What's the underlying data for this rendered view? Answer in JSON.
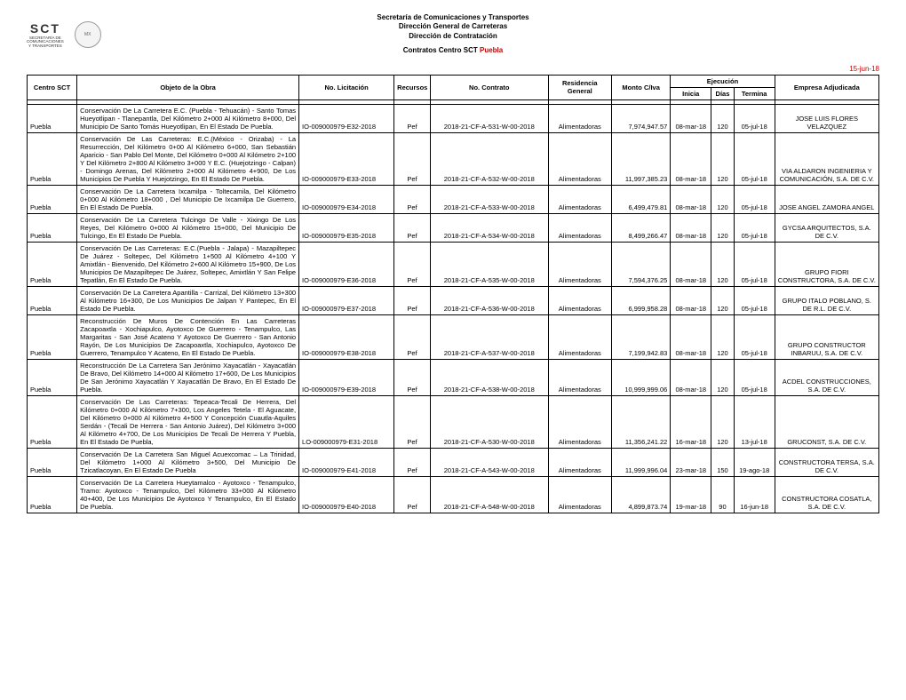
{
  "header": {
    "line1": "Secretaría de Comunicaciones y Transportes",
    "line2": "Dirección General de Carreteras",
    "line3": "Dirección de Contratación",
    "line4_a": "Contratos Centro SCT ",
    "line4_b": "Puebla",
    "date": "15-jun-18",
    "logo_sct": "SCT",
    "logo_sct_sub": "SECRETARÍA DE\nCOMUNICACIONES\nY TRANSPORTES"
  },
  "columns": {
    "centro": "Centro SCT",
    "objeto": "Objeto de la Obra",
    "licitacion": "No. Licitación",
    "recursos": "Recursos",
    "contrato": "No. Contrato",
    "residencia": "Residencia General",
    "monto": "Monto C/Iva",
    "ejecucion": "Ejecución",
    "inicia": "Inicia",
    "dias": "Días",
    "termina": "Termina",
    "empresa": "Empresa Adjudicada"
  },
  "rows": [
    {
      "centro": "Puebla",
      "objeto": "Conservación De La Carretera E.C. (Puebla - Tehuacán) - Santo Tomas Hueyotlipan - Tlanepantla, Del Kilómetro 2+000 Al Kilómetro 8+000, Del Municipio De Santo Tomás Hueyotlipan, En El Estado De Puebla.",
      "licitacion": "IO-009000979-E32-2018",
      "recursos": "Pef",
      "contrato": "2018-21-CF-A-531-W-00-2018",
      "residencia": "Alimentadoras",
      "monto": "7,974,947.57",
      "inicia": "08-mar-18",
      "dias": "120",
      "termina": "05-jul-18",
      "empresa": "JOSE LUIS FLORES VELAZQUEZ"
    },
    {
      "centro": "Puebla",
      "objeto": "Conservación De Las Carreteras: E.C.(México - Orizaba) - La Resurrección, Del Kilómetro 0+00 Al Kilómetro 6+000, San Sebastián Aparicio - San Pablo Del Monte, Del Kilómetro 0+000 Al Kilómetro 2+100 Y Del Kilómetro 2+800 Al Kilómetro 3+000  Y E.C. (Huejotzingo - Calpan) - Domingo Arenas, Del Kilómetro 2+000 Al Kilómetro 4+900, De Los Municipios De Puebla Y Huejotzingo, En El Estado De Puebla.",
      "licitacion": "IO-009000979-E33-2018",
      "recursos": "Pef",
      "contrato": "2018-21-CF-A-532-W-00-2018",
      "residencia": "Alimentadoras",
      "monto": "11,997,385.23",
      "inicia": "08-mar-18",
      "dias": "120",
      "termina": "05-jul-18",
      "empresa": "VIA ALDARON INGENIERIA Y COMUNICACIÓN, S.A. DE C.V."
    },
    {
      "centro": "Puebla",
      "objeto": "Conservación De La Carretera Ixcamilpa - Toltecamila, Del Kilómetro 0+000 Al Kilómetro 18+000 , Del Municipio De Ixcamilpa De Guerrero, En El Estado De Puebla.",
      "licitacion": "IO-009000979-E34-2018",
      "recursos": "Pef",
      "contrato": "2018-21-CF-A-533-W-00-2018",
      "residencia": "Alimentadoras",
      "monto": "6,499,479.81",
      "inicia": "08-mar-18",
      "dias": "120",
      "termina": "05-jul-18",
      "empresa": "JOSE ANGEL ZAMORA ANGEL"
    },
    {
      "centro": "Puebla",
      "objeto": "Conservación De La Carretera Tulcingo De Valle - Xixingo De Los Reyes, Del Kilómetro 0+000 Al Kilómetro 15+000, Del Municipio De Tulcingo, En El Estado De Puebla.",
      "licitacion": "IO-009000979-E35-2018",
      "recursos": "Pef",
      "contrato": "2018-21-CF-A-534-W-00-2018",
      "residencia": "Alimentadoras",
      "monto": "8,499,266.47",
      "inicia": "08-mar-18",
      "dias": "120",
      "termina": "05-jul-18",
      "empresa": "GYCSA ARQUITECTOS, S.A. DE C.V."
    },
    {
      "centro": "Puebla",
      "objeto": "Conservación De Las Carreteras: E.C.(Puebla - Jalapa) - Mazapiltepec De Juárez - Soltepec, Del Kilómetro 1+500 Al Kilómetro 4+100 Y Amixtlán - Bienvenido, Del Kilómetro 2+600 Al Kilómetro 15+900, De Los Municipios De Mazapiltepec  De Juárez, Soltepec, Amixtlán Y San Felipe Tepatlán, En El Estado De Puebla.",
      "licitacion": "IO-009000979-E36-2018",
      "recursos": "Pef",
      "contrato": "2018-21-CF-A-535-W-00-2018",
      "residencia": "Alimentadoras",
      "monto": "7,594,376.25",
      "inicia": "08-mar-18",
      "dias": "120",
      "termina": "05-jul-18",
      "empresa": "GRUPO FIORI CONSTRUCTORA, S.A. DE C.V."
    },
    {
      "centro": "Puebla",
      "objeto": "Conservación De La Carretera Apantilla - Carrizal, Del Kilómetro 13+300 Al Kilómetro 16+300, De Los Municipios De Jalpan Y Pantepec, En El Estado De Puebla.",
      "licitacion": "IO-009000979-E37-2018",
      "recursos": "Pef",
      "contrato": "2018-21-CF-A-536-W-00-2018",
      "residencia": "Alimentadoras",
      "monto": "6,999,958.28",
      "inicia": "08-mar-18",
      "dias": "120",
      "termina": "05-jul-18",
      "empresa": "GRUPO ITALO POBLANO, S. DE R.L. DE C.V."
    },
    {
      "centro": "Puebla",
      "objeto": "Reconstrucción De Muros De Contención En Las Carreteras Zacapoaxtla - Xochiapulco, Ayotoxco De Guerrero - Tenampulco, Las Margaritas - San José Acateno Y Ayotoxco De Guerrero - San Antonio Rayón, De Los Municipios De Zacapoaxtla, Xochiapulco, Ayotoxco De Guerrero, Tenampulco Y Acateno, En El Estado De Puebla.",
      "licitacion": "IO-009000979-E38-2018",
      "recursos": "Pef",
      "contrato": "2018-21-CF-A-537-W-00-2018",
      "residencia": "Alimentadoras",
      "monto": "7,199,942.83",
      "inicia": "08-mar-18",
      "dias": "120",
      "termina": "05-jul-18",
      "empresa": "GRUPO CONSTRUCTOR INBARUU, S.A. DE C.V."
    },
    {
      "centro": "Puebla",
      "objeto": "Reconstrucción De La Carretera San Jerónimo Xayacatlán - Xayacatlán De Bravo, Del Kilómetro 14+000 Al Kilómetro 17+600, De Los Municipios De San Jerónimo Xayacatlán Y Xayacatlán De Bravo, En El Estado De Puebla.",
      "licitacion": "IO-009000979-E39-2018",
      "recursos": "Pef",
      "contrato": "2018-21-CF-A-538-W-00-2018",
      "residencia": "Alimentadoras",
      "monto": "10,999,999.06",
      "inicia": "08-mar-18",
      "dias": "120",
      "termina": "05-jul-18",
      "empresa": "ACDEL CONSTRUCCIONES, S.A. DE C.V."
    },
    {
      "centro": "Puebla",
      "objeto": "Conservación De Las Carreteras: Tepeaca-Tecali De Herrera, Del Kilómetro 0+000 Al Kilómetro 7+300, Los Angeles Tetela - El Aguacate, Del Kilómetro 0+000 Al Kilómetro 4+500 Y Concepción Cuautla-Aquiles Serdán - (Tecali De Herrera - San Antonio Juárez), Del Kilómetro 3+000 Al Kilómetro 4+700, De Los Municipios De Tecali De Herrera Y Puebla, En El Estado De Puebla,",
      "licitacion": "LO-009000979-E31-2018",
      "recursos": "Pef",
      "contrato": "2018-21-CF-A-530-W-00-2018",
      "residencia": "Alimentadoras",
      "monto": "11,356,241.22",
      "inicia": "16-mar-18",
      "dias": "120",
      "termina": "13-jul-18",
      "empresa": "GRUCONST, S.A. DE C.V."
    },
    {
      "centro": "Puebla",
      "objeto": "Conservación De La Carretera San Miguel Acuexcomac – La Trinidad, Del Kilómetro 1+000 Al Kilómetro 3+500, Del Municipio De Tzicatlacoyan, En El Estado De Puebla",
      "licitacion": "IO-009000979-E41-2018",
      "recursos": "Pef",
      "contrato": "2018-21-CF-A-543-W-00-2018",
      "residencia": "Alimentadoras",
      "monto": "11,999,996.04",
      "inicia": "23-mar-18",
      "dias": "150",
      "termina": "19-ago-18",
      "empresa": "CONSTRUCTORA TERSA, S.A. DE C.V."
    },
    {
      "centro": "Puebla",
      "objeto": "Conservación De La Carretera Hueytamalco - Ayotoxco - Tenampulco, Tramo: Ayotoxco - Tenampulco, Del Kilómetro 33+000 Al Kilómetro 40+400, De Los Municipios De Ayotoxco Y Tenampulco, En El Estado De Puebla.",
      "licitacion": "IO-009000979-E40-2018",
      "recursos": "Pef",
      "contrato": "2018-21-CF-A-548-W-00-2018",
      "residencia": "Alimentadoras",
      "monto": "4,899,873.74",
      "inicia": "19-mar-18",
      "dias": "90",
      "termina": "16-jun-18",
      "empresa": "CONSTRUCTORA COSATLA, S.A. DE C.V."
    }
  ]
}
